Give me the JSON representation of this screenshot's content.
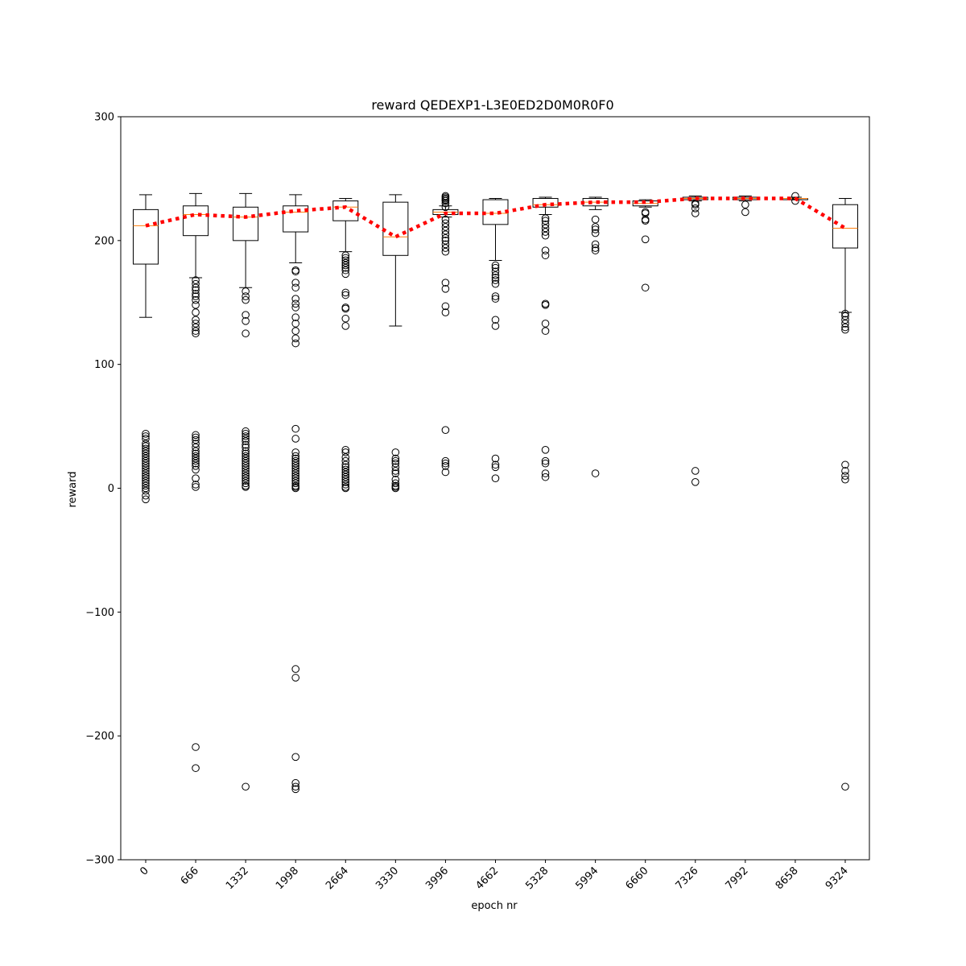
{
  "chart_data": {
    "type": "box",
    "title": "reward QEDEXP1-L3E0ED2D0M0R0F0",
    "xlabel": "epoch nr",
    "ylabel": "reward",
    "ylim": [
      -300,
      300
    ],
    "yticks": [
      -300,
      -200,
      -100,
      0,
      100,
      200,
      300
    ],
    "ytick_labels": [
      "−300",
      "−200",
      "−100",
      "0",
      "100",
      "200",
      "300"
    ],
    "categories": [
      "0",
      "666",
      "1332",
      "1998",
      "2664",
      "3330",
      "3996",
      "4662",
      "5328",
      "5994",
      "6660",
      "7326",
      "7992",
      "8658",
      "9324"
    ],
    "colors": {
      "box": "#000000",
      "median": "#ff7f0e",
      "mean_line": "#ff0000"
    },
    "boxes": [
      {
        "q1": 181,
        "median": 212,
        "q3": 225,
        "whislo": 138,
        "whishi": 237,
        "fliers": [
          44,
          42,
          40,
          36,
          34,
          32,
          30,
          28,
          26,
          24,
          22,
          20,
          18,
          16,
          14,
          12,
          10,
          8,
          6,
          4,
          2,
          0,
          -2,
          -6,
          -9
        ]
      },
      {
        "q1": 204,
        "median": 221,
        "q3": 228,
        "whislo": 170,
        "whishi": 238,
        "fliers": [
          168,
          165,
          162,
          160,
          157,
          155,
          152,
          148,
          142,
          136,
          133,
          130,
          127,
          125,
          43,
          41,
          39,
          36,
          33,
          30,
          28,
          26,
          24,
          22,
          20,
          18,
          15,
          8,
          3,
          1,
          -209,
          -226
        ]
      },
      {
        "q1": 200,
        "median": 219,
        "q3": 227,
        "whislo": 162,
        "whishi": 238,
        "fliers": [
          159,
          155,
          152,
          140,
          135,
          125,
          46,
          44,
          42,
          40,
          38,
          35,
          33,
          30,
          28,
          26,
          24,
          22,
          20,
          18,
          16,
          14,
          12,
          10,
          8,
          6,
          4,
          2,
          1,
          -241
        ]
      },
      {
        "q1": 207,
        "median": 223,
        "q3": 228,
        "whislo": 182,
        "whishi": 237,
        "fliers": [
          176,
          175,
          166,
          162,
          153,
          149,
          146,
          138,
          133,
          127,
          121,
          117,
          48,
          40,
          29,
          26,
          24,
          22,
          20,
          18,
          16,
          14,
          12,
          10,
          8,
          6,
          4,
          2,
          1,
          0,
          -146,
          -153,
          -217,
          -238,
          -241,
          -243
        ]
      },
      {
        "q1": 216,
        "median": 227,
        "q3": 232,
        "whislo": 191,
        "whishi": 234,
        "fliers": [
          188,
          186,
          184,
          182,
          180,
          178,
          176,
          173,
          158,
          156,
          146,
          145,
          137,
          131,
          31,
          29,
          25,
          22,
          19,
          17,
          15,
          13,
          11,
          9,
          7,
          5,
          3,
          1,
          0
        ]
      },
      {
        "q1": 188,
        "median": 203,
        "q3": 231,
        "whislo": 131,
        "whishi": 237,
        "fliers": [
          29,
          24,
          22,
          20,
          17,
          14,
          12,
          7,
          4,
          2,
          1,
          0
        ]
      },
      {
        "q1": 221,
        "median": 223,
        "q3": 225,
        "whislo": 219,
        "whishi": 228,
        "fliers": [
          236,
          235,
          234,
          233,
          232,
          230,
          227,
          217,
          214,
          211,
          208,
          205,
          202,
          200,
          197,
          194,
          191,
          166,
          161,
          147,
          142,
          47,
          22,
          20,
          18,
          13
        ]
      },
      {
        "q1": 213,
        "median": 222,
        "q3": 233,
        "whislo": 184,
        "whishi": 234,
        "fliers": [
          180,
          178,
          175,
          172,
          170,
          168,
          165,
          155,
          153,
          136,
          131,
          24,
          19,
          17,
          8
        ]
      },
      {
        "q1": 227,
        "median": 229,
        "q3": 234,
        "whislo": 221,
        "whishi": 235,
        "fliers": [
          218,
          216,
          213,
          210,
          207,
          204,
          192,
          188,
          149,
          148,
          133,
          127,
          31,
          22,
          20,
          12,
          9
        ]
      },
      {
        "q1": 228,
        "median": 231,
        "q3": 234,
        "whislo": 225,
        "whishi": 235,
        "fliers": [
          217,
          211,
          209,
          206,
          197,
          194,
          192,
          12
        ]
      },
      {
        "q1": 228,
        "median": 230,
        "q3": 232,
        "whislo": 227,
        "whishi": 233,
        "fliers": [
          223,
          222,
          217,
          216,
          201,
          162
        ]
      },
      {
        "q1": 233,
        "median": 234,
        "q3": 235,
        "whislo": 232,
        "whishi": 236,
        "fliers": [
          230,
          229,
          226,
          222,
          14,
          5
        ]
      },
      {
        "q1": 233,
        "median": 234,
        "q3": 235,
        "whislo": 232,
        "whishi": 236,
        "fliers": [
          229,
          223
        ]
      },
      {
        "q1": 233,
        "median": 234,
        "q3": 234,
        "whislo": 233,
        "whishi": 235,
        "fliers": [
          232,
          236
        ]
      },
      {
        "q1": 194,
        "median": 210,
        "q3": 229,
        "whislo": 142,
        "whishi": 234,
        "fliers": [
          141,
          139,
          136,
          133,
          130,
          128,
          19,
          14,
          10,
          7,
          -241
        ]
      }
    ],
    "mean_line": [
      212,
      221,
      219,
      224,
      227,
      203,
      222,
      222,
      229,
      231,
      231,
      234,
      234,
      234,
      210
    ]
  }
}
